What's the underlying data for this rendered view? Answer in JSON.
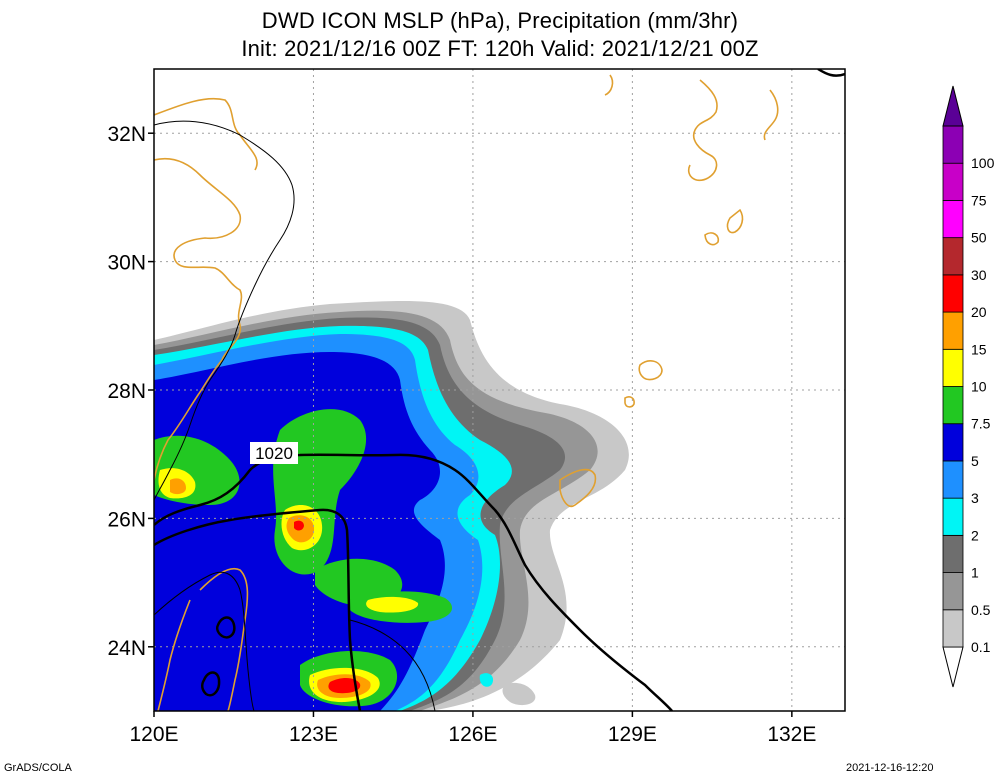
{
  "title_line1": "DWD ICON MSLP (hPa), Precipitation (mm/3hr)",
  "title_line2": "Init: 2021/12/16 00Z  FT: 120h  Valid: 2021/12/21 00Z",
  "footer_left": "GrADS/COLA",
  "footer_right": "2021-12-16-12:20",
  "map": {
    "lon_range": [
      120,
      133
    ],
    "lat_range": [
      23,
      33
    ],
    "lon_ticks": [
      {
        "value": 120,
        "label": "120E"
      },
      {
        "value": 123,
        "label": "123E"
      },
      {
        "value": 126,
        "label": "126E"
      },
      {
        "value": 129,
        "label": "129E"
      },
      {
        "value": 132,
        "label": "132E"
      }
    ],
    "lat_ticks": [
      {
        "value": 24,
        "label": "24N"
      },
      {
        "value": 26,
        "label": "26N"
      },
      {
        "value": 28,
        "label": "28N"
      },
      {
        "value": 30,
        "label": "30N"
      },
      {
        "value": 32,
        "label": "32N"
      }
    ],
    "gridlines": true,
    "isobar_label": "1020"
  },
  "colorbar": {
    "levels": [
      {
        "label": "0.1",
        "color": "#c8c8c8"
      },
      {
        "label": "0.5",
        "color": "#969696"
      },
      {
        "label": "1",
        "color": "#6e6e6e"
      },
      {
        "label": "2",
        "color": "#00f5f5"
      },
      {
        "label": "3",
        "color": "#1e90ff"
      },
      {
        "label": "5",
        "color": "#0000dc"
      },
      {
        "label": "7.5",
        "color": "#22c822"
      },
      {
        "label": "10",
        "color": "#ffff00"
      },
      {
        "label": "15",
        "color": "#ffa000"
      },
      {
        "label": "20",
        "color": "#ff0000"
      },
      {
        "label": "30",
        "color": "#b4282d"
      },
      {
        "label": "50",
        "color": "#ff00ff"
      },
      {
        "label": "75",
        "color": "#c800c8"
      },
      {
        "label": "100",
        "color": "#8c00b4"
      }
    ],
    "top_color": "#5a0096"
  },
  "colors": {
    "coastline": "#e0a030",
    "isobar": "#000000",
    "grid": "#a0a0a0"
  }
}
